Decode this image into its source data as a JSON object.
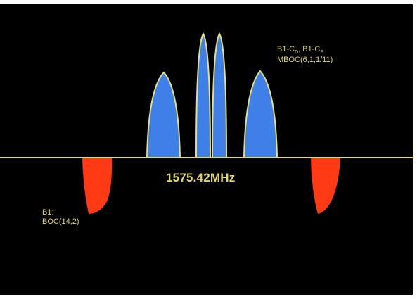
{
  "colors": {
    "background": "#000000",
    "axis": "#e3d86a",
    "upper_lobe_fill": "#3f7fe8",
    "upper_lobe_stroke": "#e8e07a",
    "lower_lobe_fill": "#ff3a14",
    "label": "#e3d86a"
  },
  "labels": {
    "center_frequency": "1575.42MHz",
    "upper_signal_line1": "B1-C",
    "upper_signal_sub1": "D",
    "upper_signal_sep": ", B1-C",
    "upper_signal_sub2": "P",
    "upper_signal_line2": "MBOC(6,1,1/11)",
    "lower_signal_line1": "B1:",
    "lower_signal_line2": "BOC(14,2)"
  }
}
